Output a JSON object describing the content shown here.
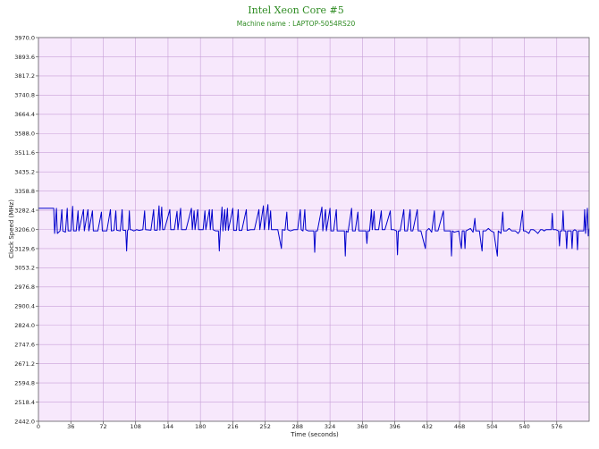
{
  "chart_data": {
    "type": "line",
    "title": "Intel Xeon Core #5",
    "subtitle": "Machine name : LAPTOP-5054RS20",
    "xlabel": "Time (seconds)",
    "ylabel": "Clock Speed (MHz)",
    "xlim": [
      0,
      612
    ],
    "ylim": [
      2442.0,
      3970.0
    ],
    "xticks": [
      0,
      36,
      72,
      108,
      144,
      180,
      216,
      252,
      288,
      324,
      360,
      396,
      432,
      468,
      504,
      540,
      576
    ],
    "yticks": [
      "2442.0",
      "2518.4",
      "2594.8",
      "2671.2",
      "2747.6",
      "2824.0",
      "2900.4",
      "2976.8",
      "3053.2",
      "3129.6",
      "3206.0",
      "3282.4",
      "3358.8",
      "3435.2",
      "3511.6",
      "3588.0",
      "3664.4",
      "3740.8",
      "3817.2",
      "3893.6",
      "3970.0"
    ],
    "grid": true,
    "legend": "none",
    "colors": {
      "line": "#0000cc",
      "plot_bg": "#f7e8fc",
      "grid": "#c8a0d8",
      "title": "#2e8b22"
    },
    "series": [
      {
        "values": [
          [
            0,
            3290
          ],
          [
            12,
            3290
          ],
          [
            17,
            3290
          ],
          [
            18,
            3190
          ],
          [
            20,
            3290
          ],
          [
            21,
            3190
          ],
          [
            24,
            3200
          ],
          [
            26,
            3285
          ],
          [
            27,
            3200
          ],
          [
            30,
            3195
          ],
          [
            32,
            3290
          ],
          [
            33,
            3200
          ],
          [
            36,
            3200
          ],
          [
            38,
            3298
          ],
          [
            39,
            3200
          ],
          [
            42,
            3200
          ],
          [
            44,
            3280
          ],
          [
            45,
            3200
          ],
          [
            50,
            3285
          ],
          [
            51,
            3200
          ],
          [
            55,
            3285
          ],
          [
            56,
            3200
          ],
          [
            60,
            3280
          ],
          [
            61,
            3200
          ],
          [
            66,
            3200
          ],
          [
            70,
            3275
          ],
          [
            71,
            3200
          ],
          [
            76,
            3200
          ],
          [
            80,
            3285
          ],
          [
            81,
            3200
          ],
          [
            84,
            3202
          ],
          [
            86,
            3280
          ],
          [
            87,
            3203
          ],
          [
            91,
            3200
          ],
          [
            93,
            3285
          ],
          [
            94,
            3203
          ],
          [
            97,
            3202
          ],
          [
            98,
            3120
          ],
          [
            99,
            3202
          ],
          [
            100,
            3205
          ],
          [
            101,
            3280
          ],
          [
            102,
            3205
          ],
          [
            104,
            3204
          ],
          [
            106,
            3200
          ],
          [
            109,
            3205
          ],
          [
            112,
            3202
          ],
          [
            116,
            3205
          ],
          [
            118,
            3280
          ],
          [
            119,
            3205
          ],
          [
            125,
            3203
          ],
          [
            128,
            3285
          ],
          [
            129,
            3203
          ],
          [
            132,
            3203
          ],
          [
            134,
            3300
          ],
          [
            135,
            3203
          ],
          [
            137,
            3295
          ],
          [
            138,
            3205
          ],
          [
            140,
            3205
          ],
          [
            146,
            3285
          ],
          [
            147,
            3205
          ],
          [
            151,
            3205
          ],
          [
            154,
            3278
          ],
          [
            155,
            3205
          ],
          [
            158,
            3290
          ],
          [
            159,
            3205
          ],
          [
            164,
            3205
          ],
          [
            170,
            3290
          ],
          [
            171,
            3205
          ],
          [
            173,
            3280
          ],
          [
            174,
            3205
          ],
          [
            177,
            3285
          ],
          [
            178,
            3205
          ],
          [
            180,
            3205
          ],
          [
            183,
            3205
          ],
          [
            185,
            3280
          ],
          [
            186,
            3205
          ],
          [
            190,
            3285
          ],
          [
            191,
            3205
          ],
          [
            193,
            3285
          ],
          [
            194,
            3205
          ],
          [
            197,
            3200
          ],
          [
            200,
            3200
          ],
          [
            201,
            3120
          ],
          [
            202,
            3200
          ],
          [
            204,
            3295
          ],
          [
            205,
            3200
          ],
          [
            207,
            3285
          ],
          [
            208,
            3202
          ],
          [
            210,
            3290
          ],
          [
            211,
            3202
          ],
          [
            216,
            3290
          ],
          [
            217,
            3202
          ],
          [
            220,
            3202
          ],
          [
            222,
            3285
          ],
          [
            223,
            3202
          ],
          [
            226,
            3202
          ],
          [
            231,
            3285
          ],
          [
            232,
            3202
          ],
          [
            236,
            3205
          ],
          [
            240,
            3205
          ],
          [
            245,
            3285
          ],
          [
            246,
            3205
          ],
          [
            250,
            3300
          ],
          [
            251,
            3205
          ],
          [
            255,
            3305
          ],
          [
            256,
            3205
          ],
          [
            258,
            3280
          ],
          [
            259,
            3205
          ],
          [
            262,
            3205
          ],
          [
            266,
            3205
          ],
          [
            270,
            3130
          ],
          [
            271,
            3205
          ],
          [
            274,
            3203
          ],
          [
            276,
            3275
          ],
          [
            277,
            3205
          ],
          [
            280,
            3200
          ],
          [
            284,
            3205
          ],
          [
            288,
            3205
          ],
          [
            291,
            3285
          ],
          [
            292,
            3205
          ],
          [
            294,
            3200
          ],
          [
            296,
            3285
          ],
          [
            297,
            3205
          ],
          [
            300,
            3200
          ],
          [
            306,
            3200
          ],
          [
            307,
            3115
          ],
          [
            308,
            3200
          ],
          [
            310,
            3200
          ],
          [
            315,
            3295
          ],
          [
            316,
            3200
          ],
          [
            319,
            3285
          ],
          [
            320,
            3200
          ],
          [
            324,
            3290
          ],
          [
            325,
            3200
          ],
          [
            328,
            3200
          ],
          [
            331,
            3285
          ],
          [
            332,
            3200
          ],
          [
            336,
            3200
          ],
          [
            340,
            3200
          ],
          [
            341,
            3100
          ],
          [
            342,
            3200
          ],
          [
            344,
            3195
          ],
          [
            348,
            3290
          ],
          [
            349,
            3200
          ],
          [
            352,
            3200
          ],
          [
            355,
            3275
          ],
          [
            356,
            3200
          ],
          [
            360,
            3200
          ],
          [
            364,
            3200
          ],
          [
            365,
            3150
          ],
          [
            366,
            3200
          ],
          [
            368,
            3200
          ],
          [
            370,
            3285
          ],
          [
            371,
            3205
          ],
          [
            373,
            3278
          ],
          [
            374,
            3205
          ],
          [
            378,
            3205
          ],
          [
            381,
            3280
          ],
          [
            382,
            3205
          ],
          [
            385,
            3205
          ],
          [
            391,
            3280
          ],
          [
            392,
            3205
          ],
          [
            395,
            3205
          ],
          [
            398,
            3200
          ],
          [
            399,
            3105
          ],
          [
            400,
            3200
          ],
          [
            402,
            3200
          ],
          [
            406,
            3285
          ],
          [
            407,
            3200
          ],
          [
            410,
            3200
          ],
          [
            413,
            3285
          ],
          [
            414,
            3200
          ],
          [
            416,
            3200
          ],
          [
            421,
            3285
          ],
          [
            422,
            3200
          ],
          [
            425,
            3200
          ],
          [
            430,
            3130
          ],
          [
            431,
            3200
          ],
          [
            434,
            3210
          ],
          [
            437,
            3195
          ],
          [
            440,
            3280
          ],
          [
            441,
            3200
          ],
          [
            444,
            3200
          ],
          [
            450,
            3280
          ],
          [
            451,
            3200
          ],
          [
            453,
            3200
          ],
          [
            458,
            3200
          ],
          [
            459,
            3100
          ],
          [
            460,
            3200
          ],
          [
            462,
            3195
          ],
          [
            467,
            3200
          ],
          [
            470,
            3130
          ],
          [
            471,
            3200
          ],
          [
            473,
            3200
          ],
          [
            474,
            3130
          ],
          [
            475,
            3200
          ],
          [
            480,
            3210
          ],
          [
            483,
            3195
          ],
          [
            485,
            3250
          ],
          [
            486,
            3200
          ],
          [
            490,
            3200
          ],
          [
            493,
            3120
          ],
          [
            494,
            3200
          ],
          [
            497,
            3200
          ],
          [
            500,
            3210
          ],
          [
            503,
            3200
          ],
          [
            506,
            3195
          ],
          [
            510,
            3100
          ],
          [
            511,
            3200
          ],
          [
            514,
            3190
          ],
          [
            516,
            3275
          ],
          [
            517,
            3200
          ],
          [
            520,
            3200
          ],
          [
            523,
            3210
          ],
          [
            526,
            3200
          ],
          [
            530,
            3200
          ],
          [
            533,
            3190
          ],
          [
            535,
            3200
          ],
          [
            538,
            3280
          ],
          [
            539,
            3200
          ],
          [
            541,
            3200
          ],
          [
            545,
            3190
          ],
          [
            547,
            3205
          ],
          [
            550,
            3205
          ],
          [
            552,
            3200
          ],
          [
            555,
            3190
          ],
          [
            558,
            3205
          ],
          [
            560,
            3205
          ],
          [
            562,
            3200
          ],
          [
            564,
            3205
          ],
          [
            568,
            3205
          ],
          [
            570,
            3205
          ],
          [
            571,
            3270
          ],
          [
            572,
            3205
          ],
          [
            575,
            3205
          ],
          [
            578,
            3200
          ],
          [
            579,
            3140
          ],
          [
            580,
            3200
          ],
          [
            582,
            3200
          ],
          [
            583,
            3280
          ],
          [
            584,
            3200
          ],
          [
            586,
            3200
          ],
          [
            587,
            3130
          ],
          [
            588,
            3200
          ],
          [
            590,
            3200
          ],
          [
            592,
            3200
          ],
          [
            593,
            3130
          ],
          [
            594,
            3200
          ],
          [
            596,
            3205
          ],
          [
            598,
            3200
          ],
          [
            599,
            3125
          ],
          [
            600,
            3200
          ],
          [
            604,
            3200
          ],
          [
            606,
            3200
          ],
          [
            607,
            3285
          ],
          [
            608,
            3190
          ],
          [
            610,
            3290
          ],
          [
            611,
            3180
          ],
          [
            612,
            3210
          ]
        ]
      }
    ]
  }
}
